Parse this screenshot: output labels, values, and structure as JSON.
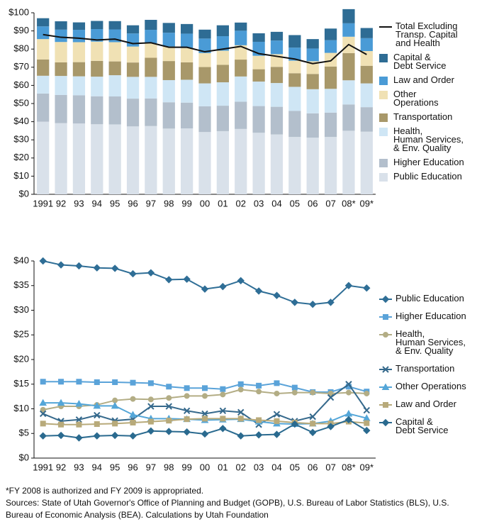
{
  "chart_data": [
    {
      "type": "bar",
      "stacked": true,
      "categories": [
        "1991",
        "92",
        "93",
        "94",
        "95",
        "96",
        "97",
        "98",
        "99",
        "00",
        "01",
        "02",
        "03",
        "04",
        "05",
        "06",
        "07",
        "08*",
        "09*"
      ],
      "ylim": [
        0,
        100
      ],
      "yticks": [
        {
          "value": 0,
          "label": "$0"
        },
        {
          "value": 10,
          "label": "$10"
        },
        {
          "value": 20,
          "label": "$20"
        },
        {
          "value": 30,
          "label": "$30"
        },
        {
          "value": 40,
          "label": "$40"
        },
        {
          "value": 50,
          "label": "$50"
        },
        {
          "value": 60,
          "label": "$60"
        },
        {
          "value": 70,
          "label": "$70"
        },
        {
          "value": 80,
          "label": "$80"
        },
        {
          "value": 90,
          "label": "$90"
        },
        {
          "value": 100,
          "label": "$100"
        }
      ],
      "series": [
        {
          "name": "Public Education",
          "color": "#d9e1ea",
          "values": [
            40,
            39.2,
            39,
            38.6,
            38.5,
            37.4,
            37.6,
            36.2,
            36.3,
            34.3,
            34.8,
            36,
            33.9,
            33,
            31.6,
            31.2,
            31.6,
            35,
            34.5
          ]
        },
        {
          "name": "Higher Education",
          "color": "#b3bfcc",
          "values": [
            15.5,
            15.5,
            15.5,
            15.4,
            15.4,
            15.3,
            15.2,
            14.5,
            14.2,
            14.2,
            14,
            15,
            14.7,
            15.2,
            14.3,
            13.4,
            13.4,
            14.5,
            13.5
          ]
        },
        {
          "name": "Health,\nHuman Services,\n& Env. Quality",
          "color": "#cfe6f5",
          "values": [
            9.8,
            10.5,
            10.5,
            10.8,
            11.7,
            12,
            11.9,
            12.2,
            12.6,
            12.6,
            12.9,
            13.9,
            13.5,
            13.1,
            13.3,
            13.3,
            13.1,
            13.3,
            13.1
          ]
        },
        {
          "name": "Transportation",
          "color": "#a8986a",
          "values": [
            9,
            7.5,
            7.8,
            8.7,
            7.6,
            7.9,
            10.5,
            10.5,
            9.6,
            9,
            9.6,
            9.3,
            6.8,
            8.9,
            7.5,
            8.4,
            12.3,
            15,
            9.7
          ]
        },
        {
          "name": "Other\nOperations",
          "color": "#f0e1b4",
          "values": [
            11.2,
            11.2,
            11,
            10.6,
            10.6,
            8.8,
            8,
            8,
            7.9,
            7.7,
            7.8,
            7.9,
            7.4,
            7,
            6.9,
            7,
            7.5,
            9,
            8.1
          ]
        },
        {
          "name": "Law and Order",
          "color": "#4a9bd6",
          "values": [
            7,
            6.8,
            6.8,
            6.9,
            7,
            7.2,
            7.4,
            7.6,
            7.9,
            8,
            8,
            8,
            7.7,
            7.5,
            7.2,
            7,
            7,
            7.4,
            7.1
          ]
        },
        {
          "name": "Capital &\nDebt Service",
          "color": "#2e6c94",
          "values": [
            4.5,
            4.6,
            4.1,
            4.5,
            4.6,
            4.5,
            5.5,
            5.4,
            5.3,
            4.9,
            6,
            4.5,
            4.7,
            4.8,
            6.9,
            5.2,
            6.4,
            7.8,
            5.6
          ]
        },
        {
          "name": "Total Excluding\nTransp. Capital\nand Health",
          "color": "#111111",
          "type": "line",
          "values": [
            88,
            86.5,
            86,
            85,
            85.5,
            83,
            83.5,
            81,
            81,
            78.5,
            80,
            81.5,
            77.5,
            76,
            74.5,
            72,
            73.5,
            82.5,
            77
          ]
        }
      ]
    },
    {
      "type": "line",
      "categories": [
        "1991",
        "92",
        "93",
        "94",
        "95",
        "96",
        "97",
        "98",
        "99",
        "00",
        "01",
        "02",
        "03",
        "04",
        "05",
        "06",
        "07",
        "08*",
        "09*"
      ],
      "ylim": [
        0,
        40
      ],
      "yticks": [
        {
          "value": 0,
          "label": "$0"
        },
        {
          "value": 5,
          "label": "$5"
        },
        {
          "value": 10,
          "label": "$10"
        },
        {
          "value": 15,
          "label": "$15"
        },
        {
          "value": 20,
          "label": "$20"
        },
        {
          "value": 25,
          "label": "$25"
        },
        {
          "value": 30,
          "label": "$30"
        },
        {
          "value": 35,
          "label": "$35"
        },
        {
          "value": 40,
          "label": "$40"
        }
      ],
      "series": [
        {
          "name": "Public Education",
          "color": "#2f6e96",
          "marker": "diamond",
          "values": [
            40,
            39.2,
            39,
            38.6,
            38.5,
            37.4,
            37.6,
            36.2,
            36.3,
            34.3,
            34.8,
            36,
            33.9,
            33,
            31.6,
            31.2,
            31.6,
            35,
            34.5
          ]
        },
        {
          "name": "Higher Education",
          "color": "#5aa3d9",
          "marker": "square",
          "values": [
            15.5,
            15.5,
            15.5,
            15.4,
            15.4,
            15.3,
            15.2,
            14.5,
            14.2,
            14.2,
            14,
            15,
            14.7,
            15.2,
            14.3,
            13.4,
            13.4,
            14.5,
            13.5
          ]
        },
        {
          "name": "Health,\nHuman Services,\n& Env. Quality",
          "color": "#b3ad85",
          "marker": "circle",
          "values": [
            9.8,
            10.5,
            10.5,
            10.8,
            11.7,
            12,
            11.9,
            12.2,
            12.6,
            12.6,
            12.9,
            13.9,
            13.5,
            13.1,
            13.3,
            13.3,
            13.1,
            13.3,
            13.1
          ]
        },
        {
          "name": "Transportation",
          "color": "#35698c",
          "marker": "x",
          "values": [
            9,
            7.5,
            7.8,
            8.7,
            7.6,
            7.9,
            10.5,
            10.5,
            9.6,
            9,
            9.6,
            9.3,
            6.8,
            8.9,
            7.5,
            8.4,
            12.3,
            15,
            9.7
          ]
        },
        {
          "name": "Other Operations",
          "color": "#54a6d8",
          "marker": "triangle",
          "values": [
            11.2,
            11.2,
            11,
            10.6,
            10.6,
            8.8,
            8,
            8,
            7.9,
            7.7,
            7.8,
            7.9,
            7.4,
            7,
            6.9,
            7,
            7.5,
            9,
            8.1
          ]
        },
        {
          "name": "Law and Order",
          "color": "#b8aa7a",
          "marker": "square",
          "values": [
            7,
            6.8,
            6.8,
            6.9,
            7,
            7.2,
            7.4,
            7.6,
            7.9,
            8,
            8,
            8,
            7.7,
            7.5,
            7.2,
            7,
            7,
            7.4,
            7.1
          ]
        },
        {
          "name": "Capital &\nDebt Service",
          "color": "#2a6a8f",
          "marker": "diamond",
          "values": [
            4.5,
            4.6,
            4.1,
            4.5,
            4.6,
            4.5,
            5.5,
            5.4,
            5.3,
            4.9,
            6,
            4.5,
            4.7,
            4.8,
            6.9,
            5.2,
            6.4,
            7.8,
            5.6
          ]
        }
      ]
    }
  ],
  "notes": [
    "*FY 2008 is authorized and FY 2009 is appropriated.",
    "Sources:  State of Utah Governor's Office of Planning and Budget (GOPB), U.S. Bureau of Labor Statistics (BLS), U.S. Bureau of Economic Analysis (BEA). Calculations by Utah Foundation"
  ]
}
